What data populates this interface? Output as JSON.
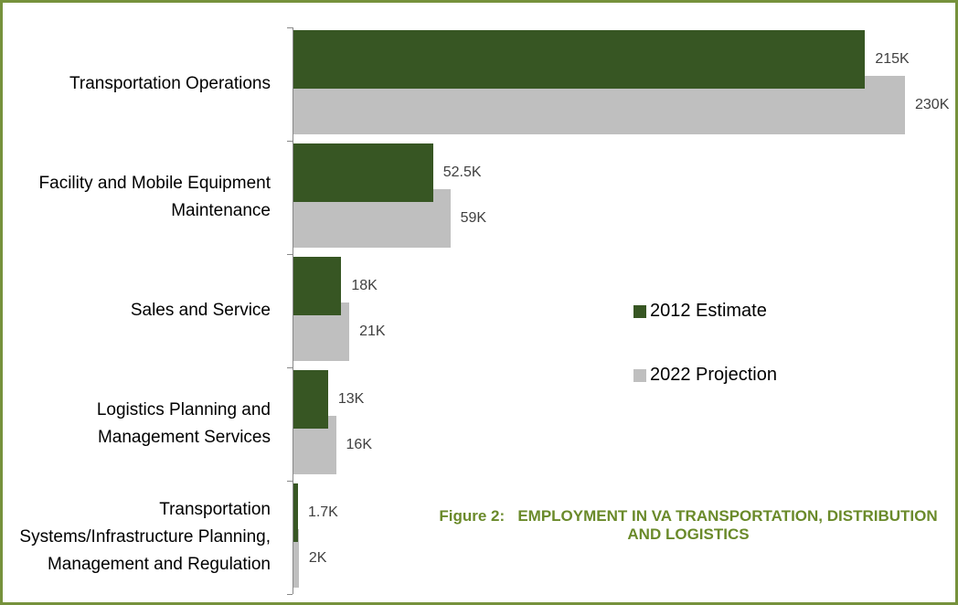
{
  "chart_data": {
    "type": "bar",
    "orientation": "horizontal",
    "title": "Figure 2:   EMPLOYMENT IN VA TRANSPORTATION, DISTRIBUTION AND LOGISTICS",
    "categories": [
      "Transportation Operations",
      "Facility and Mobile Equipment Maintenance",
      "Sales and Service",
      "Logistics Planning and Management Services",
      "Transportation Systems/Infrastructure Planning, Management and Regulation"
    ],
    "series": [
      {
        "name": "2012 Estimate",
        "color": "#375623",
        "values": [
          215,
          52.5,
          18,
          13,
          1.7
        ],
        "value_labels": [
          "215K",
          "52.5K",
          "18K",
          "13K",
          "1.7K"
        ]
      },
      {
        "name": "2022 Projection",
        "color": "#bfbfbf",
        "values": [
          230,
          59,
          21,
          16,
          2
        ],
        "value_labels": [
          "230K",
          "59K",
          "21K",
          "16K",
          "2K"
        ]
      }
    ]
  }
}
